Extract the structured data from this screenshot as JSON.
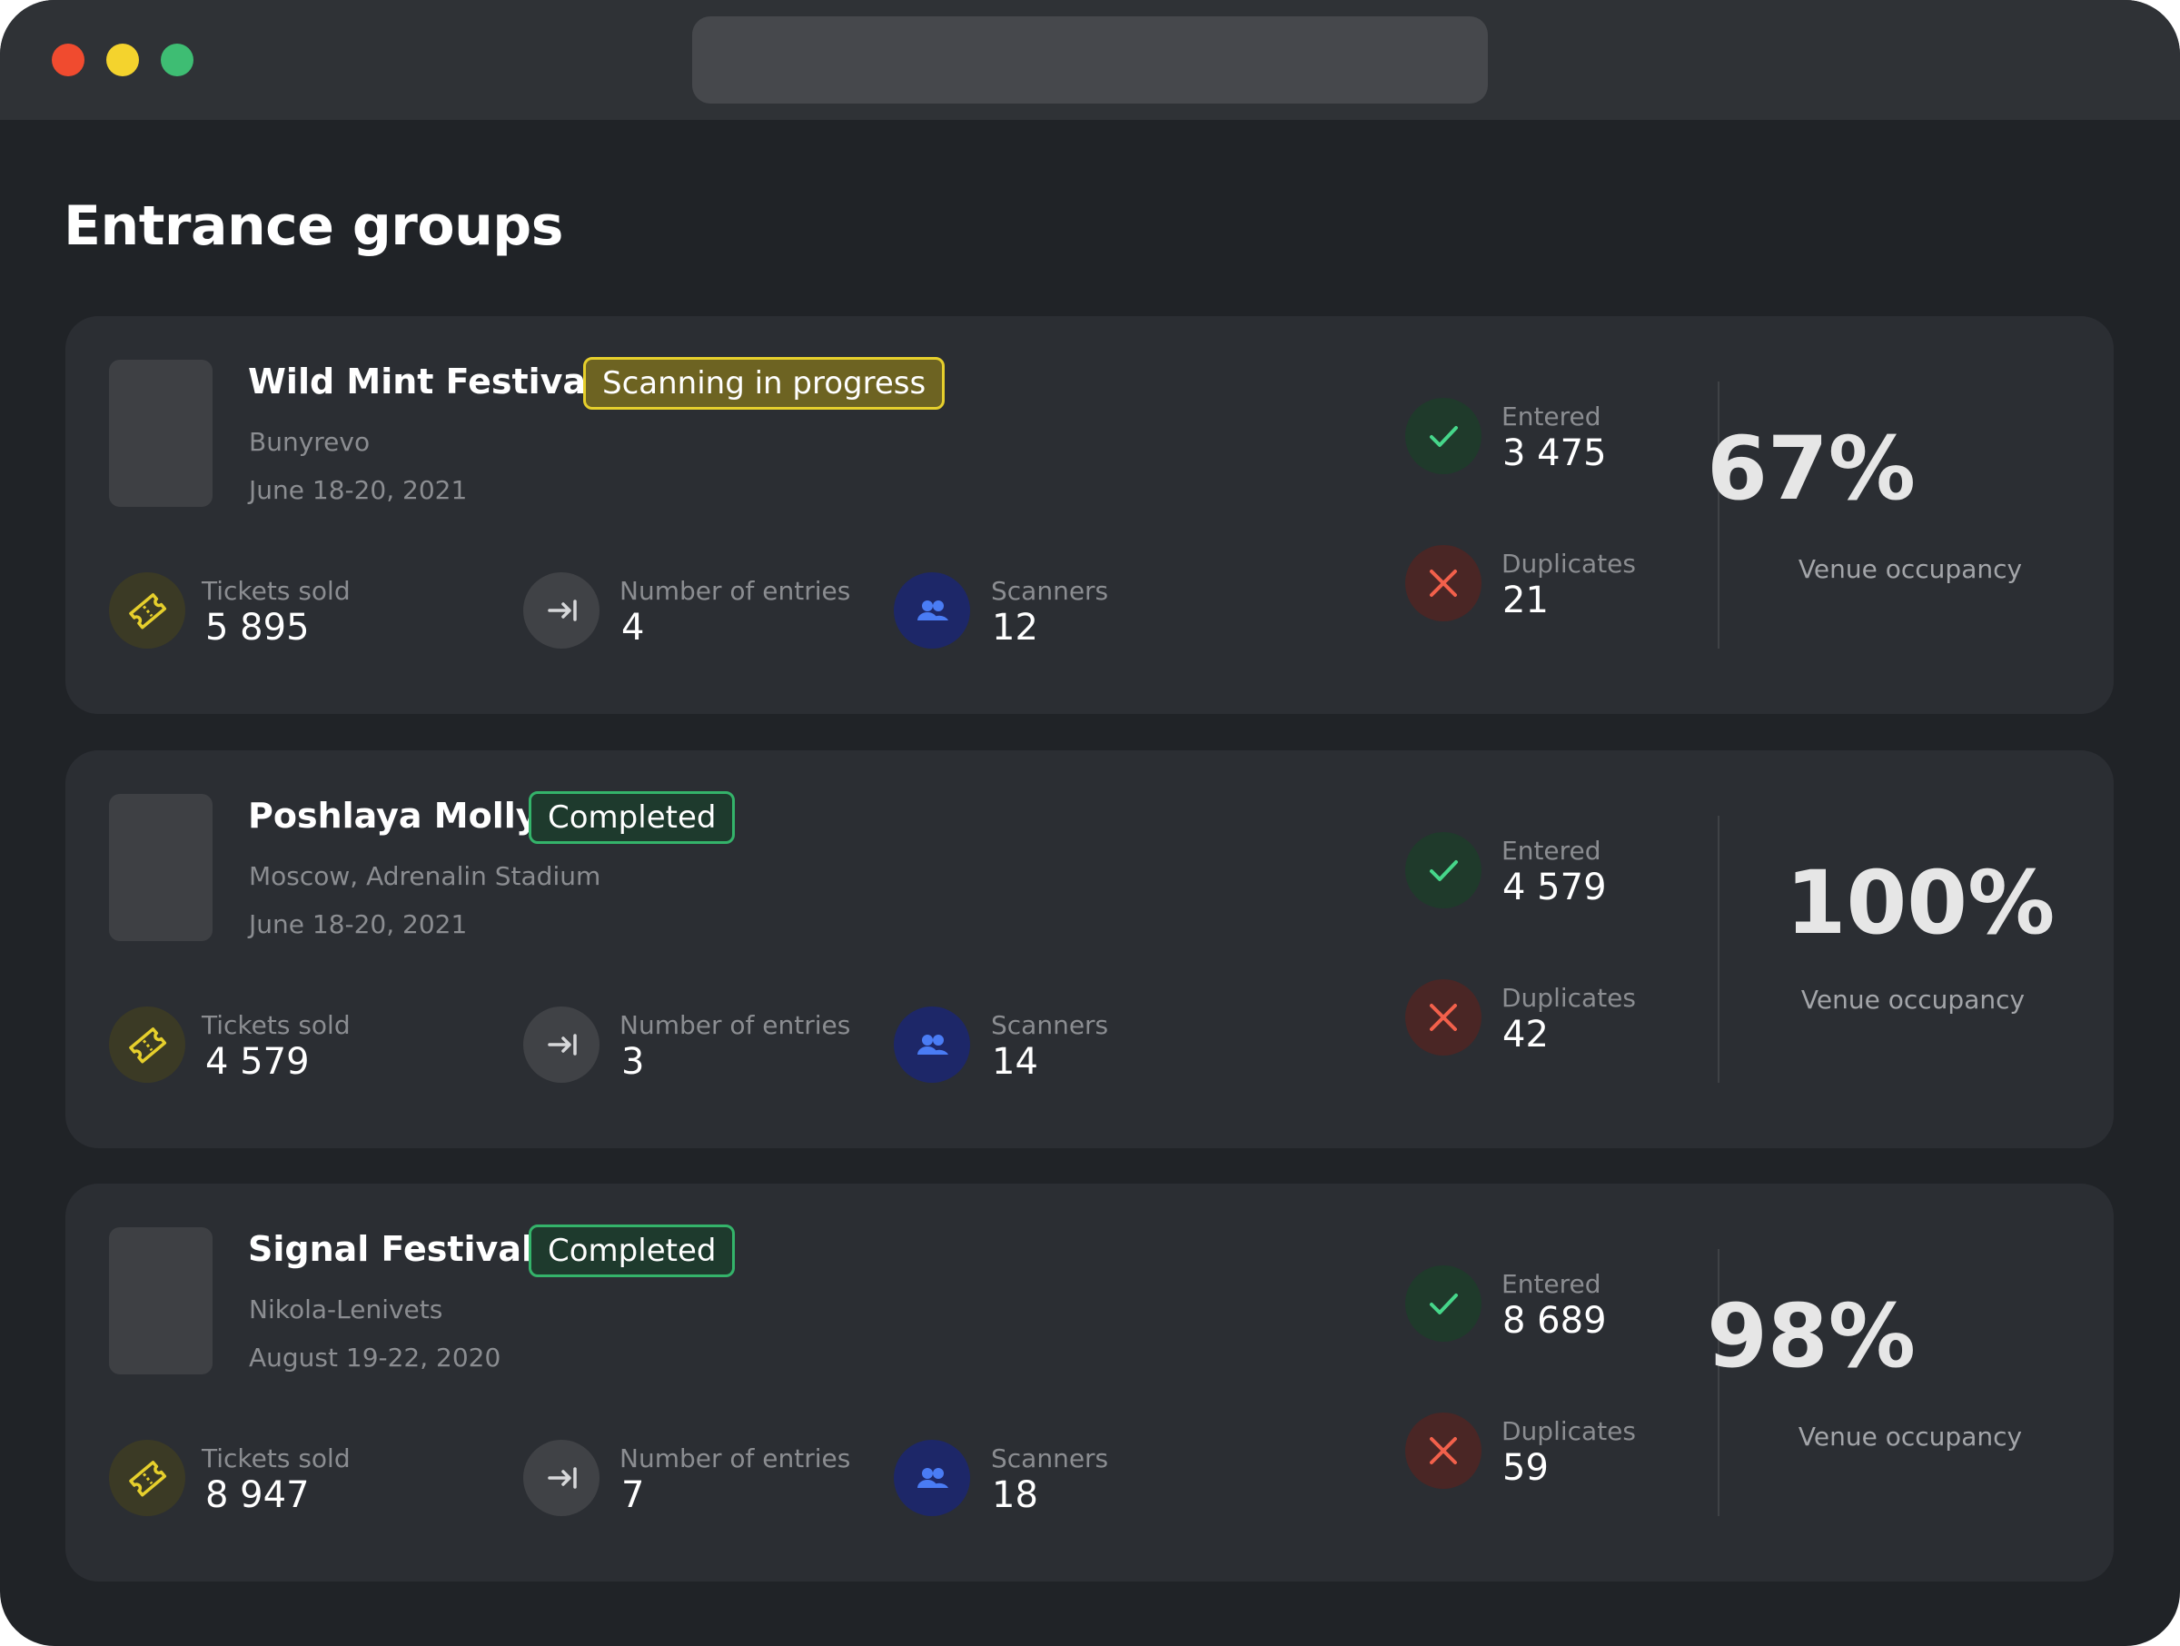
{
  "page_title": "Entrance groups",
  "colors": {
    "window_bg": "#202327",
    "card_bg": "#2b2e33",
    "in_progress": "#e6cf2c",
    "completed": "#34b36a",
    "entered": "#46d68a",
    "duplicates": "#f2604b",
    "ticket": "#e6cf2c",
    "scanners": "#4a7cf4"
  },
  "labels": {
    "tickets_sold": "Tickets sold",
    "number_of_entries": "Number of entries",
    "scanners": "Scanners",
    "entered": "Entered",
    "duplicates": "Duplicates",
    "venue_occupancy": "Venue occupancy"
  },
  "icons": {
    "ticket": "ticket-icon",
    "entries": "arrow-to-line-icon",
    "scanners": "users-icon",
    "entered": "check-icon",
    "duplicates": "close-icon"
  },
  "groups": [
    {
      "name": "Wild Mint Festival",
      "status": "Scanning in progress",
      "status_type": "progress",
      "venue": "Bunyrevo",
      "dates": "June 18-20, 2021",
      "tickets_sold": "5 895",
      "number_of_entries": "4",
      "scanners": "12",
      "entered": "3 475",
      "duplicates": "21",
      "occupancy": "67%"
    },
    {
      "name": "Poshlaya Molly",
      "status": "Completed",
      "status_type": "completed",
      "venue": "Moscow, Adrenalin Stadium",
      "dates": "June 18-20, 2021",
      "tickets_sold": "4 579",
      "number_of_entries": "3",
      "scanners": "14",
      "entered": "4 579",
      "duplicates": "42",
      "occupancy": "100%"
    },
    {
      "name": "Signal Festival",
      "status": "Completed",
      "status_type": "completed",
      "venue": "Nikola-Lenivets",
      "dates": "August 19-22, 2020",
      "tickets_sold": "8 947",
      "number_of_entries": "7",
      "scanners": "18",
      "entered": "8 689",
      "duplicates": "59",
      "occupancy": "98%"
    }
  ]
}
